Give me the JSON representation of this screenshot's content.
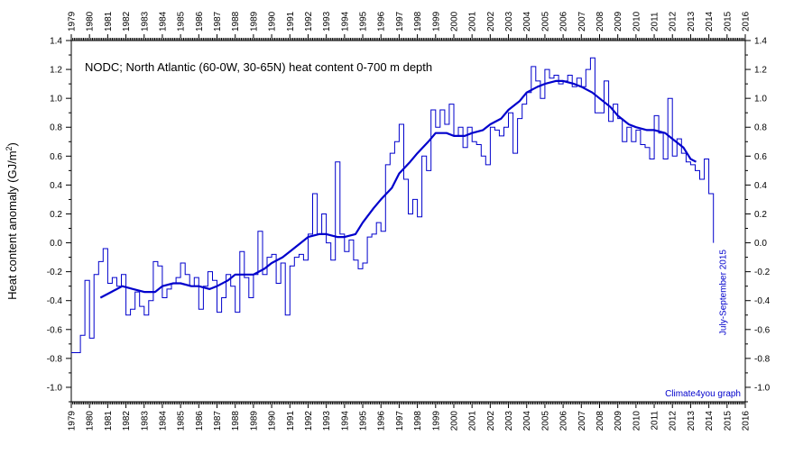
{
  "chart_data": {
    "type": "line",
    "title": "NODC; North Atlantic (60-0W, 30-65N) heat content 0-700 m depth",
    "ylabel": "Heat content anomaly (GJ/m²)",
    "ylabel_parts": [
      "Heat content anomaly (GJ/m",
      "2",
      ")"
    ],
    "xlim": [
      1979,
      2016
    ],
    "ylim": [
      -1.1,
      1.4
    ],
    "x_ticks": [
      1979,
      1980,
      1981,
      1982,
      1983,
      1984,
      1985,
      1986,
      1987,
      1988,
      1989,
      1990,
      1991,
      1992,
      1993,
      1994,
      1995,
      1996,
      1997,
      1998,
      1999,
      2000,
      2001,
      2002,
      2003,
      2004,
      2005,
      2006,
      2007,
      2008,
      2009,
      2010,
      2011,
      2012,
      2013,
      2014,
      2015,
      2016
    ],
    "x_tick_labels": [
      "1979",
      "1980",
      "1981",
      "1982",
      "1983",
      "1984",
      "1985",
      "1986",
      "1987",
      "1988",
      "1989",
      "1990",
      "1991",
      "1992",
      "1993",
      "1994",
      "1995",
      "1996",
      "1997",
      "1998",
      "1999",
      "2000",
      "2001",
      "2002",
      "2003",
      "2004",
      "2005",
      "2006",
      "2007",
      "2008",
      "2009",
      "2010",
      "2011",
      "2012",
      "2013",
      "2014",
      "2015",
      "2016"
    ],
    "y_ticks": [
      1.4,
      1.2,
      1.0,
      0.8,
      0.6,
      0.4,
      0.2,
      0.0,
      -0.2,
      -0.4,
      -0.6,
      -0.8,
      -1.0
    ],
    "y_tick_labels": [
      "1.4",
      "1.2",
      "1.0",
      "0.8",
      "0.6",
      "0.4",
      "0.2",
      "0.0",
      "-0.2",
      "-0.4",
      "-0.6",
      "-0.8",
      "-1.0"
    ],
    "grid": false,
    "colors": {
      "quarterly": "#0000cc",
      "running_mean": "#0000cc",
      "annotation": "#0000cc",
      "axis": "#000000"
    },
    "series": [
      {
        "style": "step",
        "points": [
          [
            1979.0,
            -0.76
          ],
          [
            1979.5,
            -0.64
          ],
          [
            1979.75,
            -0.26
          ],
          [
            1980.0,
            -0.66
          ],
          [
            1980.25,
            -0.22
          ],
          [
            1980.5,
            -0.13
          ],
          [
            1980.75,
            -0.04
          ],
          [
            1981.0,
            -0.28
          ],
          [
            1981.25,
            -0.24
          ],
          [
            1981.5,
            -0.3
          ],
          [
            1981.75,
            -0.22
          ],
          [
            1982.0,
            -0.5
          ],
          [
            1982.25,
            -0.46
          ],
          [
            1982.5,
            -0.34
          ],
          [
            1982.75,
            -0.44
          ],
          [
            1983.0,
            -0.5
          ],
          [
            1983.25,
            -0.4
          ],
          [
            1983.5,
            -0.13
          ],
          [
            1983.75,
            -0.16
          ],
          [
            1984.0,
            -0.38
          ],
          [
            1984.25,
            -0.32
          ],
          [
            1984.5,
            -0.28
          ],
          [
            1984.75,
            -0.24
          ],
          [
            1985.0,
            -0.14
          ],
          [
            1985.25,
            -0.22
          ],
          [
            1985.5,
            -0.3
          ],
          [
            1985.75,
            -0.24
          ],
          [
            1986.0,
            -0.46
          ],
          [
            1986.25,
            -0.3
          ],
          [
            1986.5,
            -0.2
          ],
          [
            1986.75,
            -0.26
          ],
          [
            1987.0,
            -0.48
          ],
          [
            1987.25,
            -0.38
          ],
          [
            1987.5,
            -0.22
          ],
          [
            1987.75,
            -0.3
          ],
          [
            1988.0,
            -0.48
          ],
          [
            1988.25,
            -0.06
          ],
          [
            1988.5,
            -0.24
          ],
          [
            1988.75,
            -0.38
          ],
          [
            1989.0,
            -0.22
          ],
          [
            1989.25,
            0.08
          ],
          [
            1989.5,
            -0.22
          ],
          [
            1989.75,
            -0.1
          ],
          [
            1990.0,
            -0.08
          ],
          [
            1990.25,
            -0.28
          ],
          [
            1990.5,
            -0.14
          ],
          [
            1990.75,
            -0.5
          ],
          [
            1991.0,
            -0.16
          ],
          [
            1991.25,
            -0.1
          ],
          [
            1991.5,
            -0.08
          ],
          [
            1991.75,
            -0.12
          ],
          [
            1992.0,
            0.06
          ],
          [
            1992.25,
            0.34
          ],
          [
            1992.5,
            0.06
          ],
          [
            1992.75,
            0.2
          ],
          [
            1993.0,
            0.0
          ],
          [
            1993.25,
            -0.12
          ],
          [
            1993.5,
            0.56
          ],
          [
            1993.75,
            0.06
          ],
          [
            1994.0,
            -0.06
          ],
          [
            1994.25,
            0.02
          ],
          [
            1994.5,
            -0.12
          ],
          [
            1994.75,
            -0.18
          ],
          [
            1995.0,
            -0.14
          ],
          [
            1995.25,
            0.04
          ],
          [
            1995.5,
            0.06
          ],
          [
            1995.75,
            0.14
          ],
          [
            1996.0,
            0.08
          ],
          [
            1996.25,
            0.54
          ],
          [
            1996.5,
            0.62
          ],
          [
            1996.75,
            0.7
          ],
          [
            1997.0,
            0.82
          ],
          [
            1997.25,
            0.44
          ],
          [
            1997.5,
            0.2
          ],
          [
            1997.75,
            0.3
          ],
          [
            1998.0,
            0.18
          ],
          [
            1998.25,
            0.6
          ],
          [
            1998.5,
            0.5
          ],
          [
            1998.75,
            0.92
          ],
          [
            1999.0,
            0.8
          ],
          [
            1999.25,
            0.92
          ],
          [
            1999.5,
            0.82
          ],
          [
            1999.75,
            0.96
          ],
          [
            2000.0,
            0.74
          ],
          [
            2000.25,
            0.8
          ],
          [
            2000.5,
            0.66
          ],
          [
            2000.75,
            0.8
          ],
          [
            2001.0,
            0.7
          ],
          [
            2001.25,
            0.68
          ],
          [
            2001.5,
            0.6
          ],
          [
            2001.75,
            0.54
          ],
          [
            2002.0,
            0.8
          ],
          [
            2002.25,
            0.78
          ],
          [
            2002.5,
            0.74
          ],
          [
            2002.75,
            0.8
          ],
          [
            2003.0,
            0.9
          ],
          [
            2003.25,
            0.62
          ],
          [
            2003.5,
            0.86
          ],
          [
            2003.75,
            0.96
          ],
          [
            2004.0,
            1.04
          ],
          [
            2004.25,
            1.22
          ],
          [
            2004.5,
            1.12
          ],
          [
            2004.75,
            1.0
          ],
          [
            2005.0,
            1.2
          ],
          [
            2005.25,
            1.14
          ],
          [
            2005.5,
            1.16
          ],
          [
            2005.75,
            1.1
          ],
          [
            2006.0,
            1.12
          ],
          [
            2006.25,
            1.16
          ],
          [
            2006.5,
            1.08
          ],
          [
            2006.75,
            1.14
          ],
          [
            2007.0,
            1.08
          ],
          [
            2007.25,
            1.2
          ],
          [
            2007.5,
            1.28
          ],
          [
            2007.75,
            0.9
          ],
          [
            2008.0,
            0.9
          ],
          [
            2008.25,
            1.12
          ],
          [
            2008.5,
            0.84
          ],
          [
            2008.75,
            0.96
          ],
          [
            2009.0,
            0.86
          ],
          [
            2009.25,
            0.7
          ],
          [
            2009.5,
            0.8
          ],
          [
            2009.75,
            0.7
          ],
          [
            2010.0,
            0.78
          ],
          [
            2010.25,
            0.68
          ],
          [
            2010.5,
            0.66
          ],
          [
            2010.75,
            0.58
          ],
          [
            2011.0,
            0.88
          ],
          [
            2011.25,
            0.76
          ],
          [
            2011.5,
            0.58
          ],
          [
            2011.75,
            1.0
          ],
          [
            2012.0,
            0.6
          ],
          [
            2012.25,
            0.72
          ],
          [
            2012.5,
            0.62
          ],
          [
            2012.75,
            0.56
          ],
          [
            2013.0,
            0.54
          ],
          [
            2013.25,
            0.5
          ],
          [
            2013.5,
            0.44
          ],
          [
            2013.75,
            0.58
          ],
          [
            2014.0,
            0.34
          ],
          [
            2014.25,
            0.0
          ]
        ]
      },
      {
        "style": "line",
        "points": [
          [
            1980.6,
            -0.38
          ],
          [
            1981.2,
            -0.34
          ],
          [
            1981.8,
            -0.3
          ],
          [
            1982.4,
            -0.32
          ],
          [
            1983.0,
            -0.34
          ],
          [
            1983.6,
            -0.34
          ],
          [
            1984.0,
            -0.3
          ],
          [
            1984.6,
            -0.28
          ],
          [
            1985.0,
            -0.28
          ],
          [
            1985.6,
            -0.3
          ],
          [
            1986.0,
            -0.3
          ],
          [
            1986.6,
            -0.32
          ],
          [
            1987.0,
            -0.3
          ],
          [
            1987.6,
            -0.26
          ],
          [
            1988.0,
            -0.22
          ],
          [
            1988.6,
            -0.22
          ],
          [
            1989.0,
            -0.22
          ],
          [
            1989.6,
            -0.18
          ],
          [
            1990.0,
            -0.14
          ],
          [
            1990.6,
            -0.1
          ],
          [
            1991.0,
            -0.06
          ],
          [
            1991.6,
            0.0
          ],
          [
            1992.0,
            0.04
          ],
          [
            1992.6,
            0.06
          ],
          [
            1993.0,
            0.06
          ],
          [
            1993.6,
            0.04
          ],
          [
            1994.0,
            0.04
          ],
          [
            1994.6,
            0.06
          ],
          [
            1995.0,
            0.14
          ],
          [
            1995.6,
            0.24
          ],
          [
            1996.0,
            0.3
          ],
          [
            1996.6,
            0.38
          ],
          [
            1997.0,
            0.48
          ],
          [
            1997.6,
            0.56
          ],
          [
            1998.0,
            0.62
          ],
          [
            1998.6,
            0.7
          ],
          [
            1999.0,
            0.76
          ],
          [
            1999.6,
            0.76
          ],
          [
            2000.0,
            0.74
          ],
          [
            2000.6,
            0.74
          ],
          [
            2001.0,
            0.76
          ],
          [
            2001.6,
            0.78
          ],
          [
            2002.0,
            0.82
          ],
          [
            2002.6,
            0.86
          ],
          [
            2003.0,
            0.92
          ],
          [
            2003.6,
            0.98
          ],
          [
            2004.0,
            1.04
          ],
          [
            2004.6,
            1.08
          ],
          [
            2005.0,
            1.1
          ],
          [
            2005.6,
            1.12
          ],
          [
            2006.0,
            1.12
          ],
          [
            2006.6,
            1.1
          ],
          [
            2007.0,
            1.08
          ],
          [
            2007.6,
            1.04
          ],
          [
            2008.0,
            1.0
          ],
          [
            2008.6,
            0.94
          ],
          [
            2009.0,
            0.88
          ],
          [
            2009.6,
            0.82
          ],
          [
            2010.0,
            0.8
          ],
          [
            2010.6,
            0.78
          ],
          [
            2011.0,
            0.78
          ],
          [
            2011.6,
            0.76
          ],
          [
            2012.0,
            0.72
          ],
          [
            2012.6,
            0.66
          ],
          [
            2013.0,
            0.58
          ],
          [
            2013.3,
            0.56
          ]
        ]
      }
    ],
    "annotations": {
      "vertical_label": "July-September 2015",
      "credit": "Climate4you graph"
    }
  }
}
